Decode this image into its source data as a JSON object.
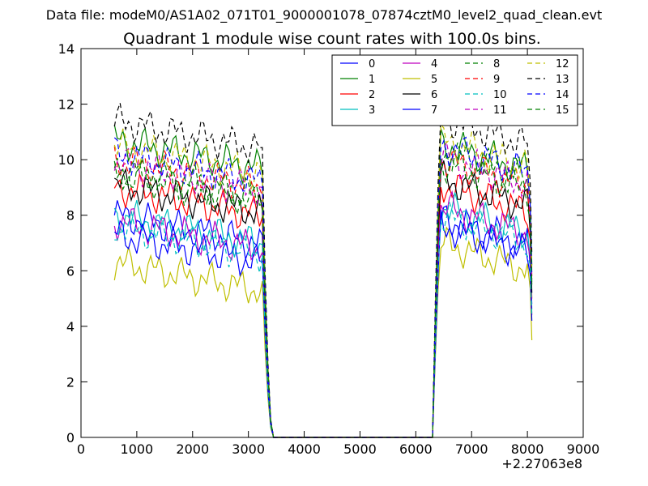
{
  "chart_data": {
    "type": "line",
    "supertitle": "Data file: modeM0/AS1A02_071T01_9000001078_07874cztM0_level2_quad_clean.evt",
    "title": "Quadrant 1 module wise count rates with 100.0s bins.",
    "xlabel": "",
    "ylabel": "",
    "xlim": [
      0,
      9000
    ],
    "ylim": [
      0,
      14
    ],
    "x_offset_label": "+2.27063e8",
    "xticks": [
      0,
      1000,
      2000,
      3000,
      4000,
      5000,
      6000,
      7000,
      8000,
      9000
    ],
    "yticks": [
      0,
      2,
      4,
      6,
      8,
      10,
      12,
      14
    ],
    "grid": false,
    "legend": {
      "placement": "top-right",
      "columns": 4
    },
    "x": [
      600,
      650,
      700,
      750,
      800,
      850,
      900,
      950,
      1000,
      1050,
      1100,
      1150,
      1200,
      1250,
      1300,
      1350,
      1400,
      1450,
      1500,
      1550,
      1600,
      1650,
      1700,
      1750,
      1800,
      1850,
      1900,
      1950,
      2000,
      2050,
      2100,
      2150,
      2200,
      2250,
      2300,
      2350,
      2400,
      2450,
      2500,
      2550,
      2600,
      2650,
      2700,
      2750,
      2800,
      2850,
      2900,
      2950,
      3000,
      3050,
      3100,
      3150,
      3200,
      3250,
      3300,
      3350,
      3400,
      3450,
      3500,
      6300,
      6350,
      6400,
      6450,
      6500,
      6550,
      6600,
      6650,
      6700,
      6750,
      6800,
      6850,
      6900,
      6950,
      7000,
      7050,
      7100,
      7150,
      7200,
      7250,
      7300,
      7350,
      7400,
      7450,
      7500,
      7550,
      7600,
      7650,
      7700,
      7750,
      7800,
      7850,
      7900,
      7950,
      8000,
      8050,
      8080
    ],
    "series": [
      {
        "name": "0",
        "color": "#0000ff",
        "dash": "solid",
        "level_a": 7.4,
        "level_b": 7.2,
        "end": 4.8
      },
      {
        "name": "1",
        "color": "#008000",
        "dash": "solid",
        "level_a": 10.1,
        "level_b": 9.9,
        "end": 6.2
      },
      {
        "name": "2",
        "color": "#ff0000",
        "dash": "solid",
        "level_a": 8.4,
        "level_b": 8.4,
        "end": 5.0
      },
      {
        "name": "3",
        "color": "#00bfbf",
        "dash": "solid",
        "level_a": 7.4,
        "level_b": 7.6,
        "end": 4.6
      },
      {
        "name": "4",
        "color": "#bf00bf",
        "dash": "solid",
        "level_a": 7.2,
        "level_b": 7.6,
        "end": 4.4
      },
      {
        "name": "5",
        "color": "#bfbf00",
        "dash": "solid",
        "level_a": 5.7,
        "level_b": 6.3,
        "end": 3.5
      },
      {
        "name": "6",
        "color": "#000000",
        "dash": "solid",
        "level_a": 8.5,
        "level_b": 8.6,
        "end": 5.2
      },
      {
        "name": "7",
        "color": "#0000ff",
        "dash": "solid",
        "level_a": 6.7,
        "level_b": 6.9,
        "end": 4.2
      },
      {
        "name": "8",
        "color": "#008000",
        "dash": "dashed",
        "level_a": 8.9,
        "level_b": 9.6,
        "end": 5.6
      },
      {
        "name": "9",
        "color": "#ff0000",
        "dash": "dashed",
        "level_a": 9.4,
        "level_b": 9.3,
        "end": 5.8
      },
      {
        "name": "10",
        "color": "#00bfbf",
        "dash": "dashed",
        "level_a": 7.0,
        "level_b": 7.3,
        "end": 4.4
      },
      {
        "name": "11",
        "color": "#bf00bf",
        "dash": "dashed",
        "level_a": 9.3,
        "level_b": 9.4,
        "end": 5.7
      },
      {
        "name": "12",
        "color": "#bfbf00",
        "dash": "dashed",
        "level_a": 9.9,
        "level_b": 10.0,
        "end": 6.0
      },
      {
        "name": "13",
        "color": "#000000",
        "dash": "dashed",
        "level_a": 10.8,
        "level_b": 10.8,
        "end": 6.6
      },
      {
        "name": "14",
        "color": "#0000ff",
        "dash": "dashed",
        "level_a": 9.6,
        "level_b": 9.8,
        "end": 5.9
      },
      {
        "name": "15",
        "color": "#008000",
        "dash": "dashed",
        "level_a": 9.1,
        "level_b": 9.2,
        "end": 5.5
      }
    ]
  }
}
